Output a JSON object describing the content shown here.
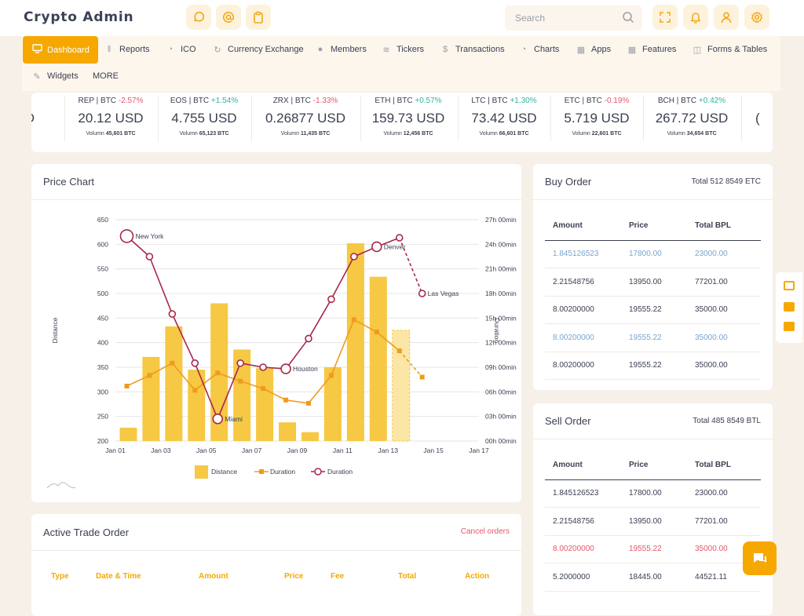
{
  "app": {
    "title": "Crypto Admin"
  },
  "header": {
    "search_placeholder": "Search",
    "icons": [
      "chat-icon",
      "at-icon",
      "clipboard-icon",
      "fullscreen-icon",
      "bell-icon",
      "user-icon",
      "gear-icon"
    ]
  },
  "nav": {
    "items": [
      {
        "label": "Dashboard",
        "icon": "monitor-icon"
      },
      {
        "label": "Reports",
        "icon": "bar-chart-icon"
      },
      {
        "label": "ICO",
        "icon": "pie-icon"
      },
      {
        "label": "Currency Exchange",
        "icon": "exchange-icon"
      },
      {
        "label": "Members",
        "icon": "users-icon"
      },
      {
        "label": "Tickers",
        "icon": "sliders-icon"
      },
      {
        "label": "Transactions",
        "icon": "dollar-icon"
      },
      {
        "label": "Charts",
        "icon": "pie-chart-icon"
      },
      {
        "label": "Apps",
        "icon": "grid-icon"
      },
      {
        "label": "Features",
        "icon": "grid-icon"
      },
      {
        "label": "Forms & Tables",
        "icon": "inbox-icon"
      },
      {
        "label": "Widgets",
        "icon": "edit-icon"
      },
      {
        "label": "MORE",
        "icon": ""
      }
    ]
  },
  "tickers": [
    {
      "pair": "REP | BTC",
      "change": "-2.57%",
      "dir": "dn",
      "price": "20.12 USD",
      "vol_label": "Volumn",
      "volume": "45,601 BTC"
    },
    {
      "pair": "EOS | BTC",
      "change": "+1.54%",
      "dir": "up",
      "price": "4.755 USD",
      "vol_label": "Volumn",
      "volume": "65,123 BTC"
    },
    {
      "pair": "ZRX | BTC",
      "change": "-1.33%",
      "dir": "dn",
      "price": "0.26877 USD",
      "vol_label": "Volumn",
      "volume": "11,435 BTC"
    },
    {
      "pair": "ETH | BTC",
      "change": "+0.57%",
      "dir": "up",
      "price": "159.73 USD",
      "vol_label": "Volumn",
      "volume": "12,456 BTC"
    },
    {
      "pair": "LTC | BTC",
      "change": "+1.30%",
      "dir": "up",
      "price": "73.42 USD",
      "vol_label": "Volumn",
      "volume": "66,601 BTC"
    },
    {
      "pair": "ETC | BTC",
      "change": "-0.19%",
      "dir": "dn",
      "price": "5.719 USD",
      "vol_label": "Volumn",
      "volume": "22,601 BTC"
    },
    {
      "pair": "BCH | BTC",
      "change": "+0.42%",
      "dir": "up",
      "price": "267.72 USD",
      "vol_label": "Volumn",
      "volume": "34,654 BTC"
    }
  ],
  "price_chart": {
    "title": "Price Chart"
  },
  "chart_data": {
    "type": "bar",
    "x_ticks": [
      "Jan 01",
      "Jan 03",
      "Jan 05",
      "Jan 07",
      "Jan 09",
      "Jan 11",
      "Jan 13",
      "Jan 15",
      "Jan 17"
    ],
    "dates": [
      "Jan 01",
      "Jan 02",
      "Jan 03",
      "Jan 04",
      "Jan 05",
      "Jan 06",
      "Jan 07",
      "Jan 08",
      "Jan 09",
      "Jan 10",
      "Jan 11",
      "Jan 12",
      "Jan 13",
      "Jan 14",
      "Jan 15"
    ],
    "ylabel": "Distance",
    "y2label": "Duration",
    "ylim": [
      200,
      650
    ],
    "y_ticks": [
      200,
      250,
      300,
      350,
      400,
      450,
      500,
      550,
      600,
      650
    ],
    "y2_ticks": [
      "00h 00min",
      "03h 00min",
      "06h 00min",
      "09h 00min",
      "12h 00min",
      "15h 00min",
      "18h 00min",
      "21h 00min",
      "24h 00min",
      "27h 00min"
    ],
    "series": [
      {
        "name": "Distance",
        "type": "bar",
        "values": [
          227,
          371,
          433,
          345,
          480,
          386,
          348,
          238,
          218,
          350,
          602,
          534,
          425,
          null,
          null
        ],
        "projected": [
          false,
          false,
          false,
          false,
          false,
          false,
          false,
          false,
          false,
          false,
          false,
          false,
          true,
          false,
          false
        ]
      },
      {
        "name": "Duration",
        "type": "line-square",
        "unit": "hours",
        "values": [
          6.7,
          8.0,
          9.5,
          6.2,
          8.3,
          7.3,
          6.4,
          5.0,
          4.6,
          8.0,
          14.8,
          13.3,
          11.0,
          7.8,
          null
        ],
        "dashed_from": 12
      },
      {
        "name": "Duration",
        "type": "line-circle",
        "unit": "hours",
        "values": [
          25.0,
          22.5,
          15.5,
          9.5,
          2.7,
          9.5,
          9.0,
          8.8,
          12.5,
          17.3,
          22.5,
          23.7,
          24.8,
          18.0,
          null
        ],
        "dashed_from": 12,
        "labels": {
          "0": "New York",
          "4": "Miami",
          "7": "Houston",
          "11": "Denver",
          "13": "Las Vegas"
        }
      }
    ],
    "legend": [
      "Distance",
      "Duration",
      "Duration"
    ],
    "colors": {
      "bar": "#f6c843",
      "bar_projected": "#fbe6a6",
      "square_line": "#ef9b1d",
      "circle_line": "#a8284a"
    }
  },
  "buy_order": {
    "title": "Buy Order",
    "total": "Total 512 8549 ETC",
    "headers": [
      "Amount",
      "Price",
      "Total BPL"
    ],
    "rows": [
      {
        "amount": "1.845126523",
        "price": "17800.00",
        "total": "23000.00",
        "style": "blue"
      },
      {
        "amount": "2.21548756",
        "price": "13950.00",
        "total": "77201.00",
        "style": ""
      },
      {
        "amount": "8.00200000",
        "price": "19555.22",
        "total": "35000.00",
        "style": ""
      },
      {
        "amount": "8.00200000",
        "price": "19555.22",
        "total": "35000.00",
        "style": "blue"
      },
      {
        "amount": "8.00200000",
        "price": "19555.22",
        "total": "35000.00",
        "style": ""
      }
    ]
  },
  "sell_order": {
    "title": "Sell Order",
    "total": "Total 485 8549 BTL",
    "headers": [
      "Amount",
      "Price",
      "Total BPL"
    ],
    "rows": [
      {
        "amount": "1.845126523",
        "price": "17800.00",
        "total": "23000.00",
        "style": ""
      },
      {
        "amount": "2.21548756",
        "price": "13950.00",
        "total": "77201.00",
        "style": ""
      },
      {
        "amount": "8.00200000",
        "price": "19555.22",
        "total": "35000.00",
        "style": "red"
      },
      {
        "amount": "5.2000000",
        "price": "18445.00",
        "total": "44521.11",
        "style": ""
      }
    ]
  },
  "active_trade": {
    "title": "Active Trade Order",
    "cancel_label": "Cancel orders",
    "headers": [
      "Type",
      "Date & Time",
      "Amount",
      "Price",
      "Fee",
      "Total",
      "Action"
    ]
  },
  "colors": {
    "accent": "#f6a800",
    "accent_light": "#fdf2dc",
    "text": "#3a3f51",
    "up": "#2bb5a3",
    "down": "#e2586b",
    "blue": "#7aa5cf"
  }
}
